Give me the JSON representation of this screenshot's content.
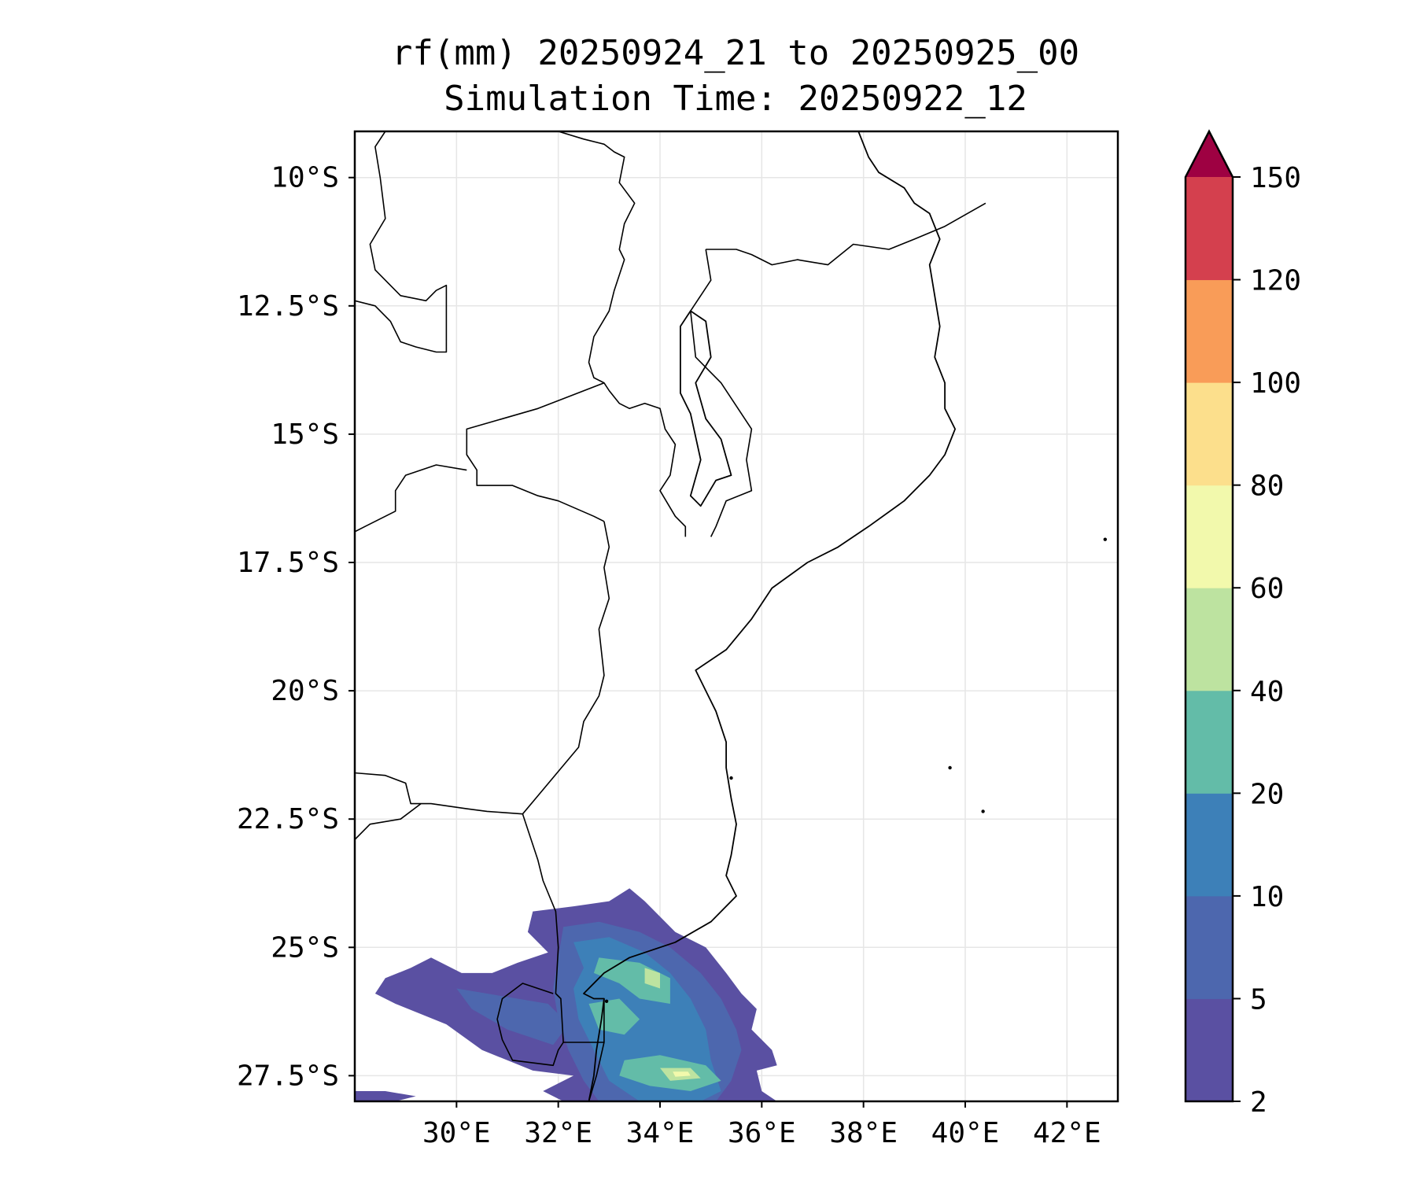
{
  "title": {
    "line1": "rf(mm) 20250924_21 to 20250925_00",
    "line2": "Simulation Time: 20250922_12"
  },
  "map": {
    "lon_range": [
      28.0,
      43.0
    ],
    "lat_range": [
      -28.0,
      -9.1
    ],
    "x_ticks": [
      {
        "value": 30,
        "label": "30°E"
      },
      {
        "value": 32,
        "label": "32°E"
      },
      {
        "value": 34,
        "label": "34°E"
      },
      {
        "value": 36,
        "label": "36°E"
      },
      {
        "value": 38,
        "label": "38°E"
      },
      {
        "value": 40,
        "label": "40°E"
      },
      {
        "value": 42,
        "label": "42°E"
      }
    ],
    "y_ticks": [
      {
        "value": -10,
        "label": "10°S"
      },
      {
        "value": -12.5,
        "label": "12.5°S"
      },
      {
        "value": -15,
        "label": "15°S"
      },
      {
        "value": -17.5,
        "label": "17.5°S"
      },
      {
        "value": -20,
        "label": "20°S"
      },
      {
        "value": -22.5,
        "label": "22.5°S"
      },
      {
        "value": -25,
        "label": "25°S"
      },
      {
        "value": -27.5,
        "label": "27.5°S"
      }
    ],
    "grid": true
  },
  "colorbar": {
    "levels": [
      2,
      5,
      10,
      20,
      40,
      60,
      80,
      100,
      120,
      150
    ],
    "level_labels": [
      "2",
      "5",
      "10",
      "20",
      "40",
      "60",
      "80",
      "100",
      "120",
      "150"
    ],
    "colors": [
      "#5a50a2",
      "#4d67ae",
      "#3d80b8",
      "#63bca8",
      "#bde3a0",
      "#f2f9ac",
      "#fcdf8c",
      "#f99c58",
      "#d4404e"
    ],
    "extend_color": "#9e0142",
    "extend": "max"
  },
  "rainfall_areas": [
    {
      "level": 0,
      "color": "#5a50a2",
      "region": "main southern band",
      "polygon": [
        [
          31.5,
          -24.3
        ],
        [
          32.3,
          -24.2
        ],
        [
          33.0,
          -24.1
        ],
        [
          33.4,
          -23.85
        ],
        [
          33.7,
          -24.1
        ],
        [
          34.3,
          -24.7
        ],
        [
          34.9,
          -25.0
        ],
        [
          35.3,
          -25.5
        ],
        [
          35.6,
          -25.9
        ],
        [
          35.9,
          -26.2
        ],
        [
          35.8,
          -26.6
        ],
        [
          36.2,
          -27.0
        ],
        [
          36.3,
          -27.3
        ],
        [
          35.9,
          -27.4
        ],
        [
          36.0,
          -27.8
        ],
        [
          36.3,
          -28.0
        ],
        [
          32.1,
          -28.0
        ],
        [
          31.7,
          -27.8
        ],
        [
          32.3,
          -27.5
        ],
        [
          31.5,
          -27.4
        ],
        [
          30.5,
          -27.0
        ],
        [
          29.8,
          -26.5
        ],
        [
          28.8,
          -26.1
        ],
        [
          28.4,
          -25.9
        ],
        [
          28.6,
          -25.6
        ],
        [
          29.1,
          -25.4
        ],
        [
          29.5,
          -25.2
        ],
        [
          30.1,
          -25.5
        ],
        [
          30.7,
          -25.5
        ],
        [
          31.2,
          -25.3
        ],
        [
          31.8,
          -25.1
        ],
        [
          31.4,
          -24.7
        ]
      ]
    },
    {
      "level": 1,
      "color": "#4d67ae",
      "region": "south africa lowveld",
      "polygon": [
        [
          30.0,
          -25.8
        ],
        [
          30.6,
          -25.9
        ],
        [
          31.2,
          -26.0
        ],
        [
          31.8,
          -26.1
        ],
        [
          32.2,
          -26.5
        ],
        [
          31.9,
          -26.9
        ],
        [
          31.0,
          -26.6
        ],
        [
          30.3,
          -26.2
        ]
      ]
    },
    {
      "level": 1,
      "color": "#4d67ae",
      "region": "southern mozambique",
      "polygon": [
        [
          32.1,
          -24.6
        ],
        [
          32.8,
          -24.5
        ],
        [
          33.6,
          -24.7
        ],
        [
          34.2,
          -25.0
        ],
        [
          34.8,
          -25.5
        ],
        [
          35.2,
          -26.0
        ],
        [
          35.5,
          -26.6
        ],
        [
          35.6,
          -27.0
        ],
        [
          35.4,
          -27.6
        ],
        [
          35.1,
          -28.0
        ],
        [
          32.8,
          -28.0
        ],
        [
          32.5,
          -27.6
        ],
        [
          32.2,
          -27.0
        ],
        [
          32.0,
          -26.4
        ],
        [
          31.9,
          -25.8
        ],
        [
          32.0,
          -25.2
        ]
      ]
    },
    {
      "level": 2,
      "color": "#3d80b8",
      "region": "maputo-gaza core",
      "polygon": [
        [
          32.3,
          -24.9
        ],
        [
          33.0,
          -24.8
        ],
        [
          33.7,
          -25.1
        ],
        [
          34.2,
          -25.5
        ],
        [
          34.6,
          -26.0
        ],
        [
          34.9,
          -26.6
        ],
        [
          35.0,
          -27.2
        ],
        [
          35.2,
          -27.8
        ],
        [
          34.8,
          -28.0
        ],
        [
          33.6,
          -28.0
        ],
        [
          33.0,
          -27.6
        ],
        [
          32.7,
          -27.0
        ],
        [
          32.4,
          -26.4
        ],
        [
          32.3,
          -25.8
        ],
        [
          32.5,
          -25.4
        ]
      ]
    },
    {
      "level": 3,
      "color": "#63bca8",
      "region": "gaza coast",
      "polygon": [
        [
          32.8,
          -25.2
        ],
        [
          33.6,
          -25.3
        ],
        [
          34.2,
          -25.6
        ],
        [
          34.2,
          -26.1
        ],
        [
          33.6,
          -26.0
        ],
        [
          33.2,
          -25.7
        ],
        [
          32.7,
          -25.5
        ]
      ]
    },
    {
      "level": 3,
      "color": "#63bca8",
      "region": "central cell",
      "polygon": [
        [
          32.6,
          -26.1
        ],
        [
          33.2,
          -26.0
        ],
        [
          33.6,
          -26.4
        ],
        [
          33.3,
          -26.7
        ],
        [
          32.8,
          -26.6
        ]
      ]
    },
    {
      "level": 3,
      "color": "#63bca8",
      "region": "southern cell",
      "polygon": [
        [
          33.3,
          -27.2
        ],
        [
          34.0,
          -27.1
        ],
        [
          34.9,
          -27.3
        ],
        [
          35.2,
          -27.6
        ],
        [
          34.6,
          -27.8
        ],
        [
          33.8,
          -27.7
        ],
        [
          33.2,
          -27.5
        ]
      ]
    },
    {
      "level": 4,
      "color": "#bde3a0",
      "region": "gaza peak",
      "polygon": [
        [
          33.7,
          -25.4
        ],
        [
          34.0,
          -25.5
        ],
        [
          34.0,
          -25.8
        ],
        [
          33.7,
          -25.7
        ]
      ]
    },
    {
      "level": 4,
      "color": "#bde3a0",
      "region": "southern peak",
      "polygon": [
        [
          34.0,
          -27.35
        ],
        [
          34.6,
          -27.35
        ],
        [
          34.8,
          -27.55
        ],
        [
          34.2,
          -27.6
        ]
      ]
    },
    {
      "level": 5,
      "color": "#f2f9ac",
      "region": "southern max",
      "polygon": [
        [
          34.25,
          -27.42
        ],
        [
          34.55,
          -27.42
        ],
        [
          34.6,
          -27.5
        ],
        [
          34.3,
          -27.52
        ]
      ]
    },
    {
      "level": 0,
      "color": "#5a50a2",
      "region": "lesotho-kzn patch",
      "polygon": [
        [
          28.0,
          -27.8
        ],
        [
          28.6,
          -27.8
        ],
        [
          29.2,
          -27.9
        ],
        [
          28.8,
          -28.0
        ],
        [
          28.0,
          -28.0
        ]
      ]
    }
  ],
  "borders": [
    {
      "name": "zambia-drc",
      "points": [
        [
          28.6,
          -9.1
        ],
        [
          28.4,
          -9.4
        ],
        [
          28.5,
          -10.0
        ],
        [
          28.6,
          -10.8
        ],
        [
          28.3,
          -11.3
        ],
        [
          28.4,
          -11.8
        ],
        [
          28.9,
          -12.3
        ],
        [
          29.4,
          -12.4
        ],
        [
          29.6,
          -12.2
        ],
        [
          29.8,
          -12.1
        ],
        [
          29.8,
          -13.4
        ],
        [
          29.6,
          -13.4
        ],
        [
          29.2,
          -13.3
        ],
        [
          28.9,
          -13.2
        ],
        [
          28.7,
          -12.8
        ],
        [
          28.4,
          -12.5
        ],
        [
          28.0,
          -12.4
        ]
      ]
    },
    {
      "name": "zambia-tanzania-malawi",
      "points": [
        [
          32.0,
          -9.1
        ],
        [
          32.5,
          -9.25
        ],
        [
          32.9,
          -9.35
        ],
        [
          33.1,
          -9.5
        ],
        [
          33.3,
          -9.6
        ],
        [
          33.2,
          -10.1
        ],
        [
          33.5,
          -10.5
        ],
        [
          33.3,
          -10.9
        ],
        [
          33.2,
          -11.4
        ],
        [
          33.3,
          -11.6
        ],
        [
          33.1,
          -12.2
        ],
        [
          33.0,
          -12.6
        ],
        [
          32.7,
          -13.1
        ],
        [
          32.6,
          -13.6
        ],
        [
          32.7,
          -13.9
        ],
        [
          32.9,
          -14.0
        ],
        [
          33.0,
          -14.15
        ],
        [
          33.2,
          -14.4
        ],
        [
          33.4,
          -14.5
        ],
        [
          33.7,
          -14.4
        ],
        [
          34.0,
          -14.5
        ],
        [
          34.1,
          -14.9
        ],
        [
          34.3,
          -15.2
        ],
        [
          34.2,
          -15.8
        ],
        [
          34.0,
          -16.1
        ],
        [
          34.3,
          -16.6
        ],
        [
          34.5,
          -16.8
        ],
        [
          34.5,
          -17.0
        ]
      ]
    },
    {
      "name": "malawi-east",
      "points": [
        [
          34.9,
          -11.4
        ],
        [
          35.0,
          -12.0
        ],
        [
          34.6,
          -12.6
        ],
        [
          34.7,
          -13.5
        ],
        [
          35.2,
          -14.0
        ],
        [
          35.8,
          -14.9
        ],
        [
          35.7,
          -15.5
        ],
        [
          35.8,
          -16.1
        ],
        [
          35.3,
          -16.3
        ],
        [
          35.1,
          -16.8
        ],
        [
          35.0,
          -17.0
        ]
      ]
    },
    {
      "name": "tanzania-mozambique",
      "points": [
        [
          34.9,
          -11.4
        ],
        [
          35.5,
          -11.4
        ],
        [
          35.8,
          -11.5
        ],
        [
          36.2,
          -11.7
        ],
        [
          36.7,
          -11.6
        ],
        [
          37.3,
          -11.7
        ],
        [
          37.8,
          -11.3
        ],
        [
          38.5,
          -11.4
        ],
        [
          39.0,
          -11.2
        ],
        [
          39.6,
          -10.95
        ],
        [
          40.4,
          -10.5
        ]
      ]
    },
    {
      "name": "zambia-mozambique",
      "points": [
        [
          32.9,
          -14.0
        ],
        [
          31.6,
          -14.5
        ],
        [
          30.2,
          -14.9
        ],
        [
          30.2,
          -15.4
        ],
        [
          30.4,
          -15.7
        ],
        [
          30.4,
          -16.0
        ],
        [
          31.1,
          -16.0
        ],
        [
          31.6,
          -16.2
        ],
        [
          32.0,
          -16.3
        ],
        [
          32.7,
          -16.6
        ],
        [
          32.9,
          -16.7
        ]
      ]
    },
    {
      "name": "zimbabwe-north",
      "points": [
        [
          30.2,
          -15.7
        ],
        [
          29.6,
          -15.6
        ],
        [
          29.0,
          -15.8
        ],
        [
          28.8,
          -16.1
        ],
        [
          28.8,
          -16.5
        ],
        [
          28.2,
          -16.8
        ],
        [
          28.0,
          -16.9
        ]
      ]
    },
    {
      "name": "zimbabwe-mozambique",
      "points": [
        [
          32.9,
          -16.7
        ],
        [
          33.0,
          -17.2
        ],
        [
          32.9,
          -17.6
        ],
        [
          33.0,
          -18.2
        ],
        [
          32.8,
          -18.8
        ],
        [
          32.9,
          -19.7
        ],
        [
          32.8,
          -20.1
        ],
        [
          32.5,
          -20.6
        ],
        [
          32.4,
          -21.1
        ],
        [
          31.3,
          -22.4
        ]
      ]
    },
    {
      "name": "botswana-zimbabwe-sa",
      "points": [
        [
          28.0,
          -21.6
        ],
        [
          28.6,
          -21.65
        ],
        [
          29.0,
          -21.8
        ],
        [
          29.1,
          -22.2
        ],
        [
          29.5,
          -22.2
        ],
        [
          30.2,
          -22.3
        ],
        [
          30.6,
          -22.35
        ],
        [
          31.3,
          -22.4
        ]
      ]
    },
    {
      "name": "sa-north",
      "points": [
        [
          28.0,
          -22.9
        ],
        [
          28.3,
          -22.6
        ],
        [
          28.9,
          -22.5
        ],
        [
          29.3,
          -22.2
        ]
      ]
    },
    {
      "name": "sa-mozambique",
      "points": [
        [
          31.3,
          -22.4
        ],
        [
          31.6,
          -23.3
        ],
        [
          31.7,
          -23.7
        ],
        [
          31.95,
          -24.3
        ],
        [
          32.0,
          -25.0
        ],
        [
          31.95,
          -25.9
        ],
        [
          32.05,
          -26.0
        ],
        [
          32.1,
          -26.85
        ],
        [
          32.9,
          -26.85
        ],
        [
          32.9,
          -26.0
        ]
      ]
    },
    {
      "name": "eswatini",
      "points": [
        [
          31.9,
          -25.9
        ],
        [
          31.3,
          -25.7
        ],
        [
          30.9,
          -26.0
        ],
        [
          30.8,
          -26.4
        ],
        [
          30.9,
          -26.8
        ],
        [
          31.1,
          -27.2
        ],
        [
          31.9,
          -27.3
        ],
        [
          32.0,
          -27.0
        ],
        [
          32.1,
          -26.85
        ]
      ]
    },
    {
      "name": "moz-sa-south",
      "points": [
        [
          32.9,
          -26.85
        ],
        [
          32.75,
          -27.5
        ],
        [
          32.6,
          -28.0
        ]
      ]
    }
  ],
  "coastline": [
    [
      37.9,
      -9.1
    ],
    [
      38.1,
      -9.6
    ],
    [
      38.3,
      -9.9
    ],
    [
      38.8,
      -10.2
    ],
    [
      39.0,
      -10.5
    ],
    [
      39.3,
      -10.7
    ],
    [
      39.5,
      -11.2
    ],
    [
      39.3,
      -11.7
    ],
    [
      39.4,
      -12.3
    ],
    [
      39.5,
      -12.9
    ],
    [
      39.4,
      -13.5
    ],
    [
      39.6,
      -14.0
    ],
    [
      39.6,
      -14.5
    ],
    [
      39.8,
      -14.9
    ],
    [
      39.6,
      -15.4
    ],
    [
      39.3,
      -15.8
    ],
    [
      38.8,
      -16.3
    ],
    [
      38.1,
      -16.8
    ],
    [
      37.5,
      -17.2
    ],
    [
      36.9,
      -17.5
    ],
    [
      36.2,
      -18.0
    ],
    [
      35.8,
      -18.6
    ],
    [
      35.3,
      -19.2
    ],
    [
      34.7,
      -19.6
    ],
    [
      34.9,
      -20.0
    ],
    [
      35.1,
      -20.4
    ],
    [
      35.3,
      -21.0
    ],
    [
      35.3,
      -21.5
    ],
    [
      35.4,
      -22.1
    ],
    [
      35.5,
      -22.6
    ],
    [
      35.4,
      -23.2
    ],
    [
      35.3,
      -23.6
    ],
    [
      35.5,
      -24.0
    ],
    [
      35.0,
      -24.5
    ],
    [
      34.3,
      -24.9
    ],
    [
      33.4,
      -25.2
    ],
    [
      32.9,
      -25.5
    ],
    [
      32.5,
      -25.9
    ],
    [
      32.7,
      -26.0
    ],
    [
      32.9,
      -26.0
    ],
    [
      32.85,
      -26.4
    ],
    [
      32.75,
      -27.0
    ],
    [
      32.7,
      -27.5
    ],
    [
      32.6,
      -28.0
    ]
  ],
  "lake_malawi": [
    [
      34.6,
      -12.6
    ],
    [
      34.9,
      -12.8
    ],
    [
      35.0,
      -13.5
    ],
    [
      34.7,
      -14.0
    ],
    [
      34.9,
      -14.7
    ],
    [
      35.2,
      -15.1
    ],
    [
      35.4,
      -15.8
    ],
    [
      35.1,
      -15.9
    ],
    [
      34.8,
      -16.4
    ],
    [
      34.6,
      -16.2
    ],
    [
      34.8,
      -15.5
    ],
    [
      34.6,
      -14.6
    ],
    [
      34.4,
      -14.2
    ],
    [
      34.4,
      -13.4
    ],
    [
      34.4,
      -12.9
    ]
  ],
  "islands": [
    {
      "name": "europa-island",
      "lon": 40.35,
      "lat": -22.35
    },
    {
      "name": "bassas-da-india",
      "lon": 39.7,
      "lat": -21.5
    },
    {
      "name": "juan-de-nova",
      "lon": 42.75,
      "lat": -17.05
    },
    {
      "name": "inhaca",
      "lon": 32.95,
      "lat": -26.05
    },
    {
      "name": "bazaruto",
      "lon": 35.4,
      "lat": -21.7
    }
  ]
}
